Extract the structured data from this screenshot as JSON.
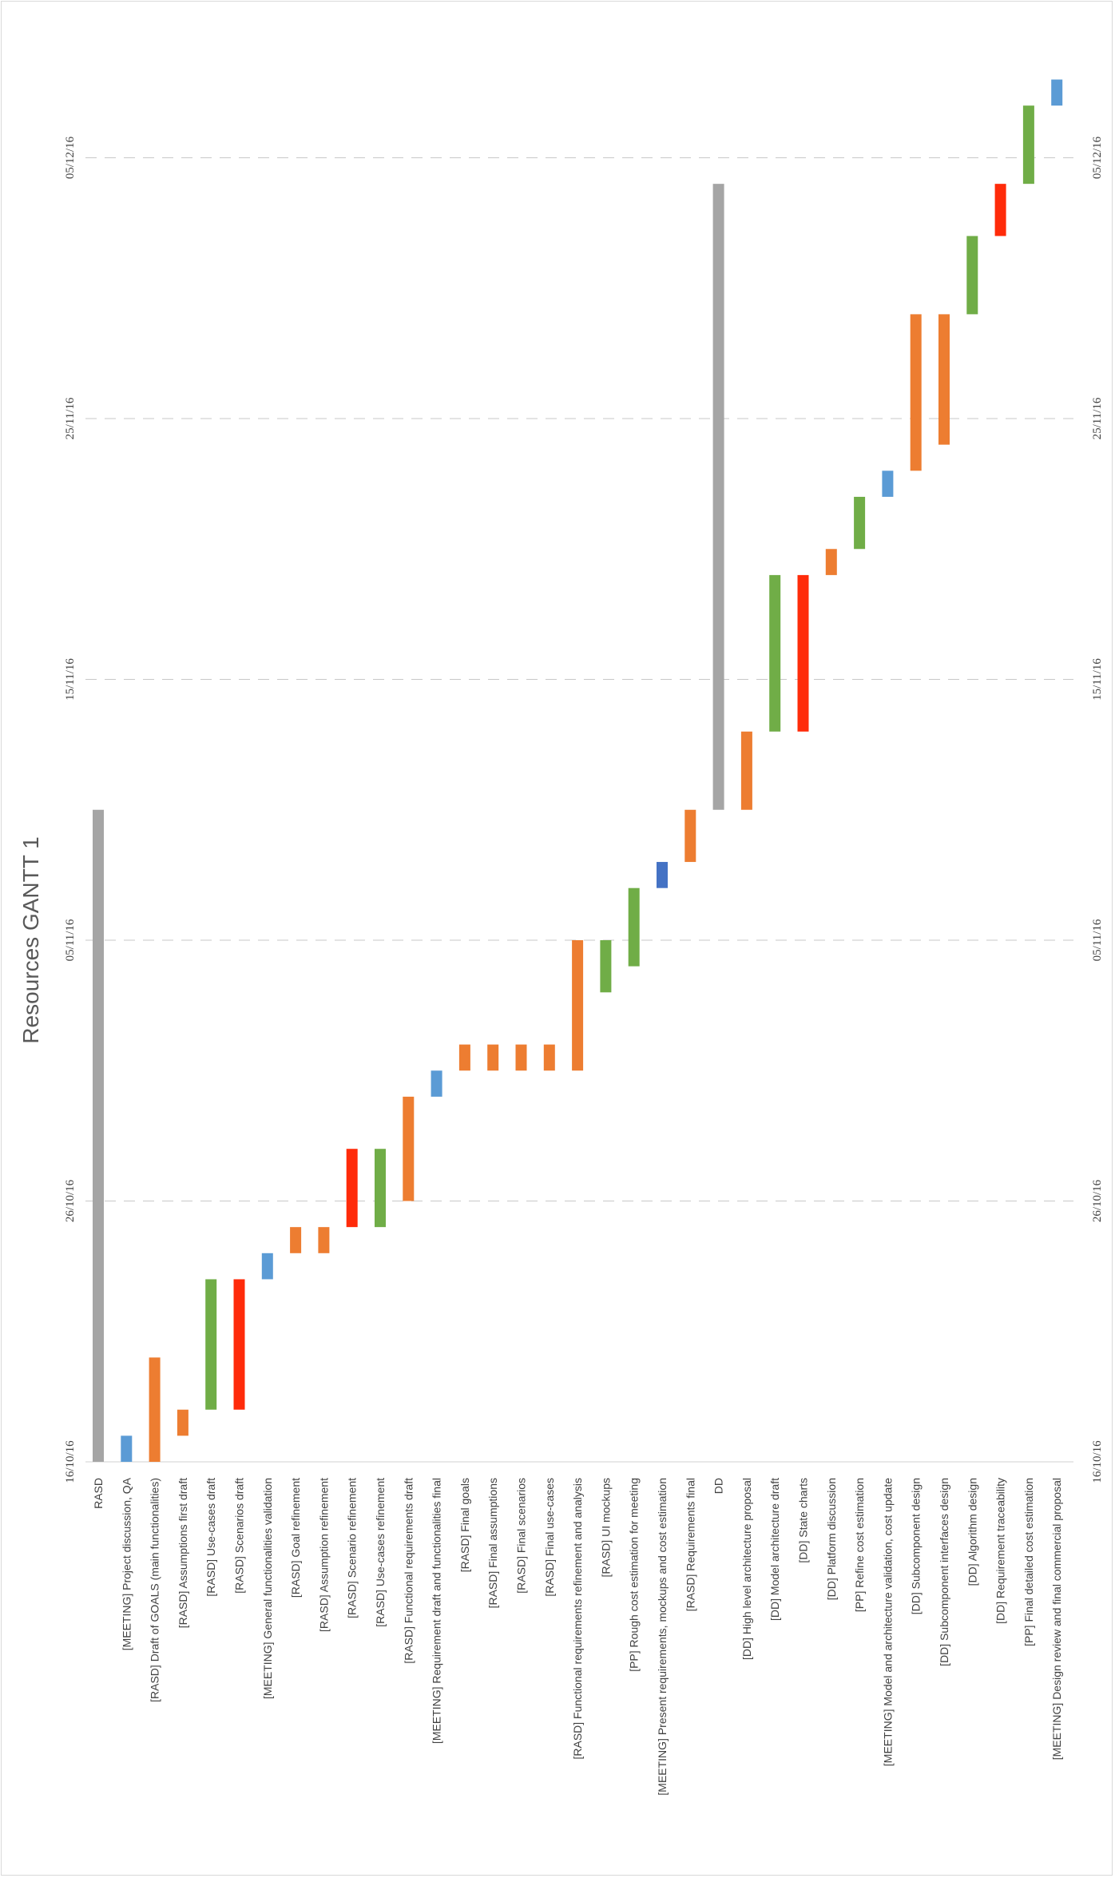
{
  "chart_data": {
    "type": "bar",
    "orientation": "gantt-rotated",
    "title": "Resources GANTT 1",
    "xlabel": "",
    "ylabel": "",
    "xlim": [
      "2016-10-16",
      "2016-12-09"
    ],
    "grid": true,
    "legend": "none",
    "ticks": [
      "16/10/16",
      "26/10/16",
      "05/11/16",
      "15/11/16",
      "25/11/16",
      "05/12/16"
    ],
    "tasks": [
      {
        "label": "RASD",
        "start": "2016-10-16",
        "end": "2016-11-10",
        "color": "#a5a5a5"
      },
      {
        "label": "[MEETING] Project discussion, QA",
        "start": "2016-10-16",
        "end": "2016-10-17",
        "color": "#5b9bd5"
      },
      {
        "label": "[RASD] Draft of GOALS (main functionalities)",
        "start": "2016-10-16",
        "end": "2016-10-20",
        "color": "#ed7d31"
      },
      {
        "label": "[RASD] Assumptions first draft",
        "start": "2016-10-17",
        "end": "2016-10-18",
        "color": "#ed7d31"
      },
      {
        "label": "[RASD] Use-cases draft",
        "start": "2016-10-18",
        "end": "2016-10-23",
        "color": "#70ad47"
      },
      {
        "label": "[RASD] Scenarios draft",
        "start": "2016-10-18",
        "end": "2016-10-23",
        "color": "#ff2b0a"
      },
      {
        "label": "[MEETING] General functionalities validation",
        "start": "2016-10-23",
        "end": "2016-10-24",
        "color": "#5b9bd5"
      },
      {
        "label": "[RASD] Goal refinement",
        "start": "2016-10-24",
        "end": "2016-10-25",
        "color": "#ed7d31"
      },
      {
        "label": "[RASD] Assumption refinement",
        "start": "2016-10-24",
        "end": "2016-10-25",
        "color": "#ed7d31"
      },
      {
        "label": "[RASD] Scenario refinement",
        "start": "2016-10-25",
        "end": "2016-10-28",
        "color": "#ff2b0a"
      },
      {
        "label": "[RASD] Use-cases refinement",
        "start": "2016-10-25",
        "end": "2016-10-28",
        "color": "#70ad47"
      },
      {
        "label": "[RASD] Functional requirements draft",
        "start": "2016-10-26",
        "end": "2016-10-30",
        "color": "#ed7d31"
      },
      {
        "label": "[MEETING] Requirement draft and functionalities final",
        "start": "2016-10-30",
        "end": "2016-10-31",
        "color": "#5b9bd5"
      },
      {
        "label": "[RASD] Final goals",
        "start": "2016-10-31",
        "end": "2016-11-01",
        "color": "#ed7d31"
      },
      {
        "label": "[RASD] Final assumptions",
        "start": "2016-10-31",
        "end": "2016-11-01",
        "color": "#ed7d31"
      },
      {
        "label": "[RASD] Final scenarios",
        "start": "2016-10-31",
        "end": "2016-11-01",
        "color": "#ed7d31"
      },
      {
        "label": "[RASD] Final use-cases",
        "start": "2016-10-31",
        "end": "2016-11-01",
        "color": "#ed7d31"
      },
      {
        "label": "[RASD] Functional requirements refinement and analysis",
        "start": "2016-10-31",
        "end": "2016-11-05",
        "color": "#ed7d31"
      },
      {
        "label": "[RASD] UI mockups",
        "start": "2016-11-03",
        "end": "2016-11-05",
        "color": "#70ad47"
      },
      {
        "label": "[PP] Rough cost estimation for meeting",
        "start": "2016-11-04",
        "end": "2016-11-07",
        "color": "#70ad47"
      },
      {
        "label": "[MEETING] Present requirements, mockups and cost estimation",
        "start": "2016-11-07",
        "end": "2016-11-08",
        "color": "#4472c4"
      },
      {
        "label": "[RASD] Requirements final",
        "start": "2016-11-08",
        "end": "2016-11-10",
        "color": "#ed7d31"
      },
      {
        "label": "DD",
        "start": "2016-11-10",
        "end": "2016-12-04",
        "color": "#a5a5a5"
      },
      {
        "label": "[DD] High level architecture proposal",
        "start": "2016-11-10",
        "end": "2016-11-13",
        "color": "#ed7d31"
      },
      {
        "label": "[DD] Model architecture draft",
        "start": "2016-11-13",
        "end": "2016-11-19",
        "color": "#70ad47"
      },
      {
        "label": "[DD] State charts",
        "start": "2016-11-13",
        "end": "2016-11-19",
        "color": "#ff2b0a"
      },
      {
        "label": "[DD] Platform discussion",
        "start": "2016-11-19",
        "end": "2016-11-20",
        "color": "#ed7d31"
      },
      {
        "label": "[PP] Refine cost estimation",
        "start": "2016-11-20",
        "end": "2016-11-22",
        "color": "#70ad47"
      },
      {
        "label": "[MEETING] Model and architecture validation, cost update",
        "start": "2016-11-22",
        "end": "2016-11-23",
        "color": "#5b9bd5"
      },
      {
        "label": "[DD] Subcomponent design",
        "start": "2016-11-23",
        "end": "2016-11-29",
        "color": "#ed7d31"
      },
      {
        "label": "[DD] Subcomponent interfaces design",
        "start": "2016-11-24",
        "end": "2016-11-29",
        "color": "#ed7d31"
      },
      {
        "label": "[DD] Algorithm design",
        "start": "2016-11-29",
        "end": "2016-12-02",
        "color": "#70ad47"
      },
      {
        "label": "[DD] Requirement traceability",
        "start": "2016-12-02",
        "end": "2016-12-04",
        "color": "#ff2b0a"
      },
      {
        "label": "[PP] Final detailed  cost estimation",
        "start": "2016-12-04",
        "end": "2016-12-07",
        "color": "#70ad47"
      },
      {
        "label": "[MEETING] Design review and final commercial proposal",
        "start": "2016-12-07",
        "end": "2016-12-08",
        "color": "#5b9bd5"
      }
    ]
  }
}
